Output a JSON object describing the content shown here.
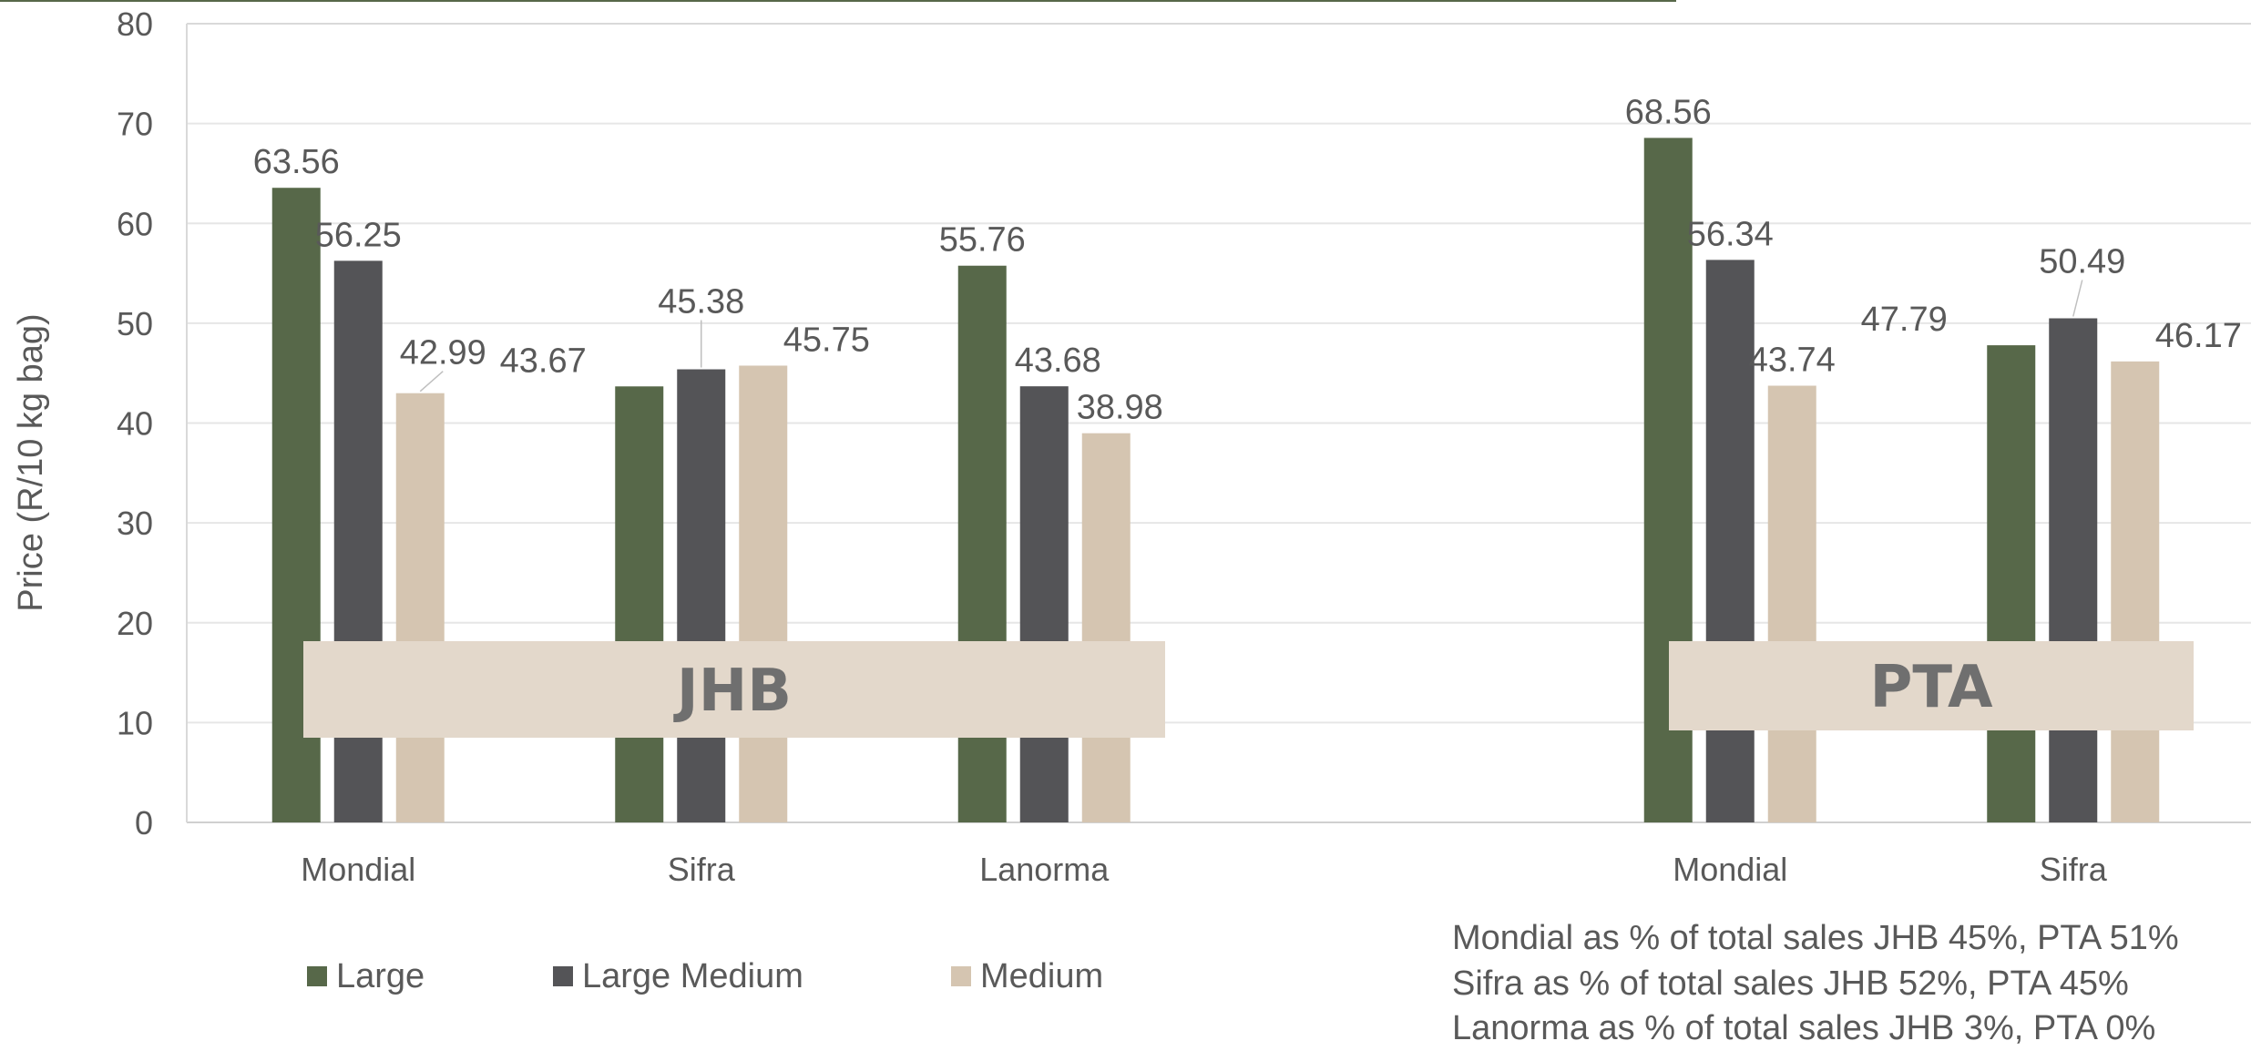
{
  "chart_data": {
    "type": "bar",
    "ylabel": "Price (R/10 kg bag)",
    "ylim": [
      0,
      80
    ],
    "yticks": [
      0,
      10,
      20,
      30,
      40,
      50,
      60,
      70,
      80
    ],
    "grid": true,
    "legend_position": "bottom-left",
    "colors": {
      "Large": "#576849",
      "Large Medium": "#545457",
      "Medium": "#d5c5b1",
      "region_box": "#e3d8cb",
      "top_line": "#576849"
    },
    "series": [
      {
        "name": "Large"
      },
      {
        "name": "Large Medium"
      },
      {
        "name": "Medium"
      }
    ],
    "groups": [
      {
        "region": "JHB",
        "categories": [
          {
            "name": "Mondial",
            "values": [
              63.56,
              56.25,
              42.99
            ],
            "labels": [
              "63.56",
              "56.25",
              "42.99"
            ]
          },
          {
            "name": "Sifra",
            "values": [
              43.67,
              45.38,
              45.75
            ],
            "labels": [
              "43.67",
              "45.38",
              "45.75"
            ]
          },
          {
            "name": "Lanorma",
            "values": [
              55.76,
              43.68,
              38.98
            ],
            "labels": [
              "55.76",
              "43.68",
              "38.98"
            ]
          }
        ]
      },
      {
        "region": "PTA",
        "categories": [
          {
            "name": "Mondial",
            "values": [
              68.56,
              56.34,
              43.74
            ],
            "labels": [
              "68.56",
              "56.34",
              "43.74"
            ]
          },
          {
            "name": "Sifra",
            "values": [
              47.79,
              50.49,
              46.17
            ],
            "labels": [
              "47.79",
              "50.49",
              "46.17"
            ]
          }
        ]
      }
    ],
    "notes": [
      "Mondial as % of total sales JHB 45%, PTA 51%",
      "Sifra as % of total sales JHB 52%, PTA 45%",
      "Lanorma as % of total sales JHB 3%, PTA 0%"
    ]
  }
}
